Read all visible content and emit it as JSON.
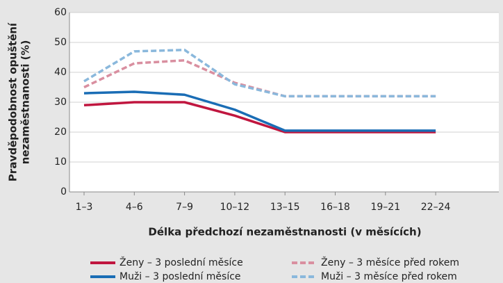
{
  "chart_data": {
    "type": "line",
    "y_label": [
      "Pravděpodobnost opuštění",
      "nezaměstnanosti (%)"
    ],
    "x_label": "Délka předchozí nezaměstnanosti (v měsících)",
    "categories": [
      "1–3",
      "4–6",
      "7–9",
      "10–12",
      "13–15",
      "16–18",
      "19–21",
      "22–24"
    ],
    "ylim": [
      0,
      60
    ],
    "yticks": [
      0,
      10,
      20,
      30,
      40,
      50,
      60
    ],
    "series": [
      {
        "name": "Ženy – 3 poslední měsíce",
        "color": "#c0163f",
        "dashed": false,
        "values": [
          29,
          30,
          30,
          25.5,
          20,
          20,
          20,
          20
        ]
      },
      {
        "name": "Ženy – 3 měsíce před rokem",
        "color": "#d98fa0",
        "dashed": true,
        "values": [
          35,
          43,
          44,
          36.5,
          32,
          32,
          32,
          32
        ]
      },
      {
        "name": "Muži – 3 poslední měsíce",
        "color": "#1a6db5",
        "dashed": false,
        "values": [
          33,
          33.5,
          32.5,
          27.5,
          20.5,
          20.5,
          20.5,
          20.5
        ]
      },
      {
        "name": "Muži – 3 měsíce před rokem",
        "color": "#8ab8dc",
        "dashed": true,
        "values": [
          37,
          47,
          47.5,
          36,
          32,
          32,
          32,
          32
        ]
      }
    ]
  }
}
